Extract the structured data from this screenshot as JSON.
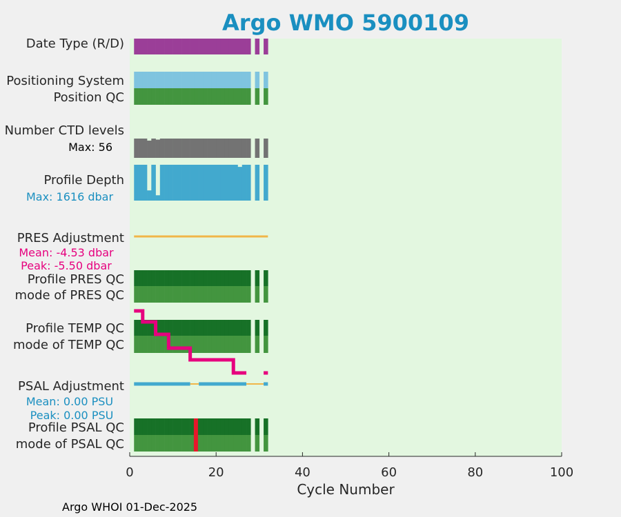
{
  "title": "Argo WMO 5900109",
  "footer": "Argo WHOI 01-Dec-2025",
  "colors": {
    "plot_bg": "#e3f7e0",
    "date_type": "#9b3e98",
    "positioning": "#7fc4df",
    "qc_good": "#43953f",
    "qc_dark": "#177127",
    "ctd": "#737373",
    "depth": "#42a9ce",
    "pres_adj": "#f0b648",
    "pink": "#e6007e",
    "psal_adj": "#42a9ce",
    "red": "#e8172b",
    "blue_text": "#1a8fc0"
  },
  "chart_data": {
    "type": "bar",
    "title": "Argo WMO 5900109",
    "xlabel": "Cycle Number",
    "xlim": [
      0,
      100
    ],
    "xticks": [
      0,
      20,
      40,
      60,
      80,
      100
    ],
    "grid": false,
    "cycles_present": [
      1,
      2,
      3,
      4,
      5,
      6,
      7,
      8,
      9,
      10,
      11,
      12,
      13,
      14,
      15,
      16,
      17,
      18,
      19,
      20,
      21,
      22,
      23,
      24,
      25,
      26,
      27,
      29,
      31
    ],
    "rows": {
      "date_type": {
        "label": "Date Type (R/D)"
      },
      "positioning_system": {
        "label": "Positioning System"
      },
      "position_qc": {
        "label": "Position QC"
      },
      "number_ctd_levels": {
        "label": "Number CTD levels",
        "max_label": "Max: 56",
        "max": 56,
        "dips": [
          {
            "cycle": 4,
            "value": 50
          },
          {
            "cycle": 6,
            "value": 53
          }
        ]
      },
      "profile_depth": {
        "label": "Profile Depth",
        "max_label": "Max: 1616 dbar",
        "max": 1616,
        "dips": [
          {
            "cycle": 4,
            "value": 460
          },
          {
            "cycle": 6,
            "value": 240
          },
          {
            "cycle": 25,
            "value": 1520
          }
        ]
      },
      "pres_adjustment": {
        "label": "PRES Adjustment",
        "mean_label": "Mean: -4.53 dbar",
        "peak_label": "Peak: -5.50 dbar"
      },
      "profile_pres_qc": {
        "label": "Profile PRES QC"
      },
      "mode_pres_qc": {
        "label": "mode of PRES QC"
      },
      "profile_temp_qc": {
        "label": "Profile TEMP QC"
      },
      "mode_temp_qc": {
        "label": "mode of TEMP QC"
      },
      "psal_adjustment": {
        "label": "PSAL Adjustment",
        "mean_label": "Mean: 0.00 PSU",
        "peak_label": "Peak: 0.00 PSU"
      },
      "profile_psal_qc": {
        "label": "Profile PSAL QC",
        "highlight_cycle": 15
      },
      "mode_psal_qc": {
        "label": "mode of PSAL QC",
        "highlight_cycle": 15
      }
    },
    "pink_trend": [
      {
        "cycle": 1,
        "level": 0
      },
      {
        "cycle": 2,
        "level": 0
      },
      {
        "cycle": 3,
        "level": 1
      },
      {
        "cycle": 4,
        "level": 1
      },
      {
        "cycle": 5,
        "level": 1
      },
      {
        "cycle": 6,
        "level": 2
      },
      {
        "cycle": 7,
        "level": 2
      },
      {
        "cycle": 8,
        "level": 2
      },
      {
        "cycle": 9,
        "level": 3
      },
      {
        "cycle": 10,
        "level": 3
      },
      {
        "cycle": 11,
        "level": 3
      },
      {
        "cycle": 12,
        "level": 3
      },
      {
        "cycle": 13,
        "level": 3
      },
      {
        "cycle": 14,
        "level": 4
      },
      {
        "cycle": 15,
        "level": 4
      },
      {
        "cycle": 16,
        "level": 4
      },
      {
        "cycle": 17,
        "level": 4
      },
      {
        "cycle": 18,
        "level": 4
      },
      {
        "cycle": 19,
        "level": 4
      },
      {
        "cycle": 20,
        "level": 4
      },
      {
        "cycle": 21,
        "level": 4
      },
      {
        "cycle": 22,
        "level": 4
      },
      {
        "cycle": 23,
        "level": 4
      },
      {
        "cycle": 24,
        "level": 5
      },
      {
        "cycle": 25,
        "level": 5
      },
      {
        "cycle": 26,
        "level": 5
      },
      {
        "cycle": 31,
        "level": 5
      }
    ],
    "psal_adj_segments": [
      {
        "from": 1,
        "to": 14,
        "color": "blue"
      },
      {
        "from": 14,
        "to": 16,
        "color": "orange"
      },
      {
        "from": 16,
        "to": 27,
        "color": "blue"
      },
      {
        "from": 27,
        "to": 31,
        "color": "orange"
      },
      {
        "from": 31,
        "to": 32,
        "color": "blue"
      }
    ],
    "pres_adj_range": [
      1,
      32
    ]
  }
}
